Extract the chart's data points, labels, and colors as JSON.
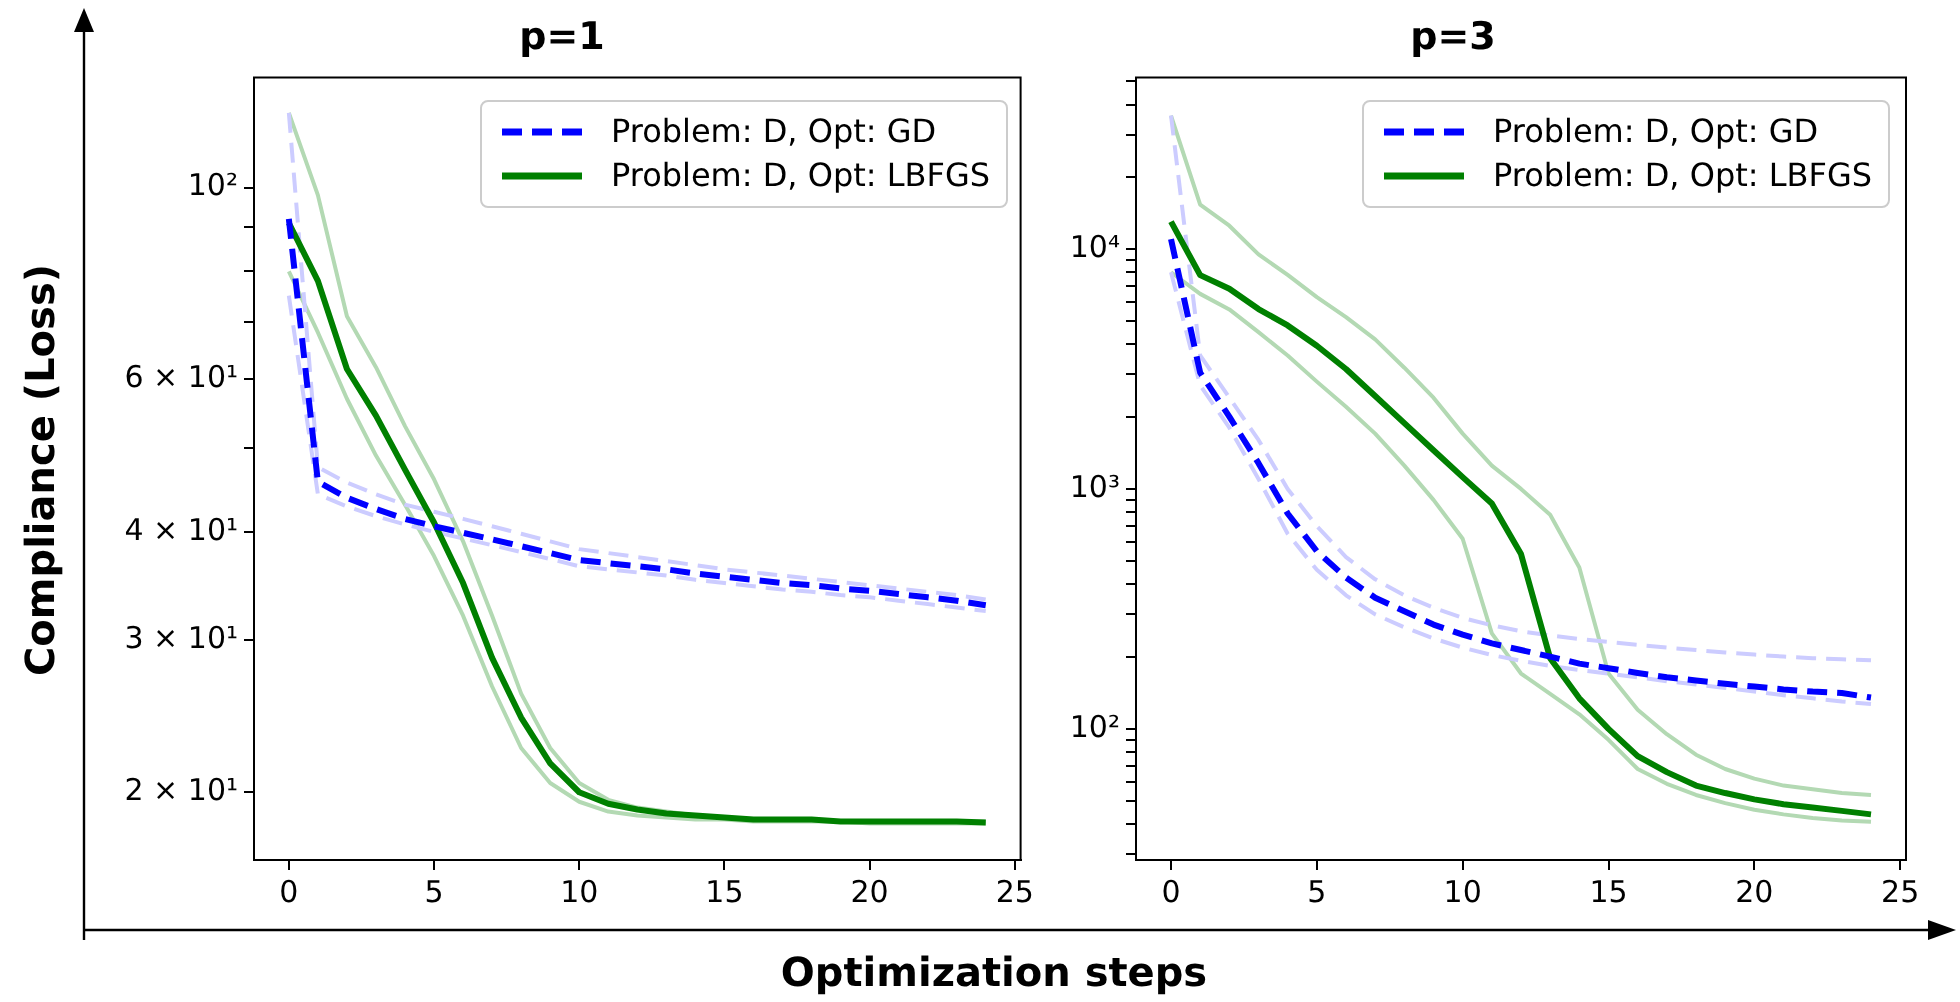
{
  "chart_data": [
    {
      "type": "line",
      "title": "p=1",
      "xlabel": "Optimization steps",
      "ylabel": "Compliance (Loss)",
      "log": "y",
      "legend": "top right",
      "marker": "none",
      "xlim": [
        -1.2,
        25.2
      ],
      "xticks": [
        0,
        5,
        10,
        15,
        20,
        25
      ],
      "ylim": [
        16.7,
        134
      ],
      "yticks": [
        {
          "value": 20,
          "label": "2 × 10¹"
        },
        {
          "value": 30,
          "label": "3 × 10¹"
        },
        {
          "value": 40,
          "label": "4 × 10¹"
        },
        {
          "value": 50,
          "label": null
        },
        {
          "value": 60,
          "label": "6 × 10¹"
        },
        {
          "value": 70,
          "label": null
        },
        {
          "value": 80,
          "label": null
        },
        {
          "value": 90,
          "label": null
        },
        {
          "value": 100,
          "label": "10²"
        }
      ],
      "x": [
        0,
        1,
        2,
        3,
        4,
        5,
        6,
        7,
        8,
        9,
        10,
        11,
        12,
        13,
        14,
        15,
        16,
        17,
        18,
        19,
        20,
        21,
        22,
        23,
        24
      ],
      "series": [
        {
          "color": "#ccccff",
          "line_style": "dashed",
          "values": [
            122,
            47.5,
            45.6,
            44.2,
            43.0,
            42.2,
            41.4,
            40.6,
            39.8,
            39.0,
            38.2,
            37.8,
            37.4,
            37.0,
            36.6,
            36.2,
            35.9,
            35.6,
            35.3,
            35.0,
            34.7,
            34.4,
            34.1,
            33.8,
            33.4
          ]
        },
        {
          "color": "#ccccff",
          "line_style": "dashed",
          "values": [
            75,
            44.2,
            42.8,
            41.7,
            40.8,
            40.0,
            39.3,
            38.6,
            37.9,
            37.2,
            36.5,
            36.2,
            35.9,
            35.6,
            35.2,
            34.9,
            34.6,
            34.3,
            34.1,
            33.8,
            33.6,
            33.3,
            33.0,
            32.7,
            32.4
          ]
        },
        {
          "color": "#b3d9b3",
          "line_style": "solid",
          "values": [
            122,
            98,
            71,
            62,
            53,
            46,
            39,
            32,
            26,
            22.5,
            20.5,
            19.6,
            19.2,
            19.0,
            18.8,
            18.7,
            18.6,
            18.6,
            18.6,
            18.5,
            18.5,
            18.5,
            18.5,
            18.5,
            18.5
          ]
        },
        {
          "color": "#b3d9b3",
          "line_style": "solid",
          "values": [
            80,
            68,
            57,
            49,
            43,
            37.5,
            32,
            26.5,
            22.5,
            20.5,
            19.5,
            19.0,
            18.8,
            18.7,
            18.6,
            18.6,
            18.5,
            18.5,
            18.5,
            18.5,
            18.4,
            18.4,
            18.4,
            18.4,
            18.4
          ]
        },
        {
          "name": "Problem: D, Opt: GD",
          "color": "#0000ff",
          "line_style": "dashed",
          "values": [
            92,
            45.7,
            43.8,
            42.5,
            41.4,
            40.6,
            39.9,
            39.2,
            38.5,
            37.8,
            37.1,
            36.8,
            36.5,
            36.2,
            35.8,
            35.5,
            35.2,
            34.9,
            34.7,
            34.4,
            34.2,
            33.9,
            33.6,
            33.3,
            32.9
          ]
        },
        {
          "name": "Problem: D, Opt: LBFGS",
          "color": "#008000",
          "line_style": "solid",
          "values": [
            91,
            78,
            61.7,
            54.5,
            47.2,
            41,
            34.9,
            28.6,
            24.4,
            21.6,
            20.0,
            19.4,
            19.1,
            18.9,
            18.8,
            18.7,
            18.6,
            18.6,
            18.6,
            18.5,
            18.5,
            18.5,
            18.5,
            18.5,
            18.45
          ]
        }
      ]
    },
    {
      "type": "line",
      "title": "p=3",
      "log": "y",
      "legend": "top right",
      "marker": "none",
      "xlim": [
        -1.2,
        25.2
      ],
      "xticks": [
        0,
        5,
        10,
        15,
        20,
        25
      ],
      "ylim": [
        28.4,
        51800
      ],
      "yticks": [
        {
          "value": 30,
          "label": null
        },
        {
          "value": 40,
          "label": null
        },
        {
          "value": 50,
          "label": null
        },
        {
          "value": 60,
          "label": null
        },
        {
          "value": 70,
          "label": null
        },
        {
          "value": 80,
          "label": null
        },
        {
          "value": 90,
          "label": null
        },
        {
          "value": 100,
          "label": "10²"
        },
        {
          "value": 200,
          "label": null
        },
        {
          "value": 300,
          "label": null
        },
        {
          "value": 400,
          "label": null
        },
        {
          "value": 500,
          "label": null
        },
        {
          "value": 600,
          "label": null
        },
        {
          "value": 700,
          "label": null
        },
        {
          "value": 800,
          "label": null
        },
        {
          "value": 900,
          "label": null
        },
        {
          "value": 1000,
          "label": "10³"
        },
        {
          "value": 2000,
          "label": null
        },
        {
          "value": 3000,
          "label": null
        },
        {
          "value": 4000,
          "label": null
        },
        {
          "value": 5000,
          "label": null
        },
        {
          "value": 6000,
          "label": null
        },
        {
          "value": 7000,
          "label": null
        },
        {
          "value": 8000,
          "label": null
        },
        {
          "value": 9000,
          "label": null
        },
        {
          "value": 10000,
          "label": "10⁴"
        },
        {
          "value": 20000,
          "label": null
        },
        {
          "value": 30000,
          "label": null
        },
        {
          "value": 40000,
          "label": null
        },
        {
          "value": 50000,
          "label": null
        }
      ],
      "x": [
        0,
        1,
        2,
        3,
        4,
        5,
        6,
        7,
        8,
        9,
        10,
        11,
        12,
        13,
        14,
        15,
        16,
        17,
        18,
        19,
        20,
        21,
        22,
        23,
        24
      ],
      "series": [
        {
          "color": "#ccccff",
          "line_style": "dashed",
          "values": [
            36000,
            3600,
            2400,
            1600,
            1000,
            700,
            520,
            420,
            360,
            320,
            290,
            270,
            255,
            245,
            237,
            230,
            224,
            218,
            213,
            208,
            204,
            200,
            197,
            195,
            193
          ]
        },
        {
          "color": "#ccccff",
          "line_style": "dashed",
          "values": [
            8000,
            2700,
            1800,
            1100,
            650,
            460,
            360,
            300,
            265,
            238,
            218,
            203,
            192,
            183,
            176,
            170,
            164,
            158,
            153,
            148,
            143,
            138,
            134,
            130,
            127
          ]
        },
        {
          "color": "#b3d9b3",
          "line_style": "solid",
          "values": [
            36000,
            15300,
            12500,
            9500,
            7800,
            6300,
            5200,
            4200,
            3200,
            2400,
            1700,
            1250,
            1000,
            780,
            470,
            170,
            120,
            95,
            78,
            68,
            62,
            58,
            56,
            54,
            53
          ]
        },
        {
          "color": "#b3d9b3",
          "line_style": "solid",
          "values": [
            8000,
            6500,
            5600,
            4500,
            3600,
            2800,
            2200,
            1700,
            1250,
            900,
            620,
            250,
            170,
            140,
            115,
            90,
            68,
            59,
            53,
            49,
            46,
            44,
            42.5,
            41.5,
            41
          ]
        },
        {
          "name": "Problem: D, Opt: GD",
          "color": "#0000ff",
          "line_style": "dashed",
          "values": [
            11000,
            3050,
            2000,
            1280,
            790,
            550,
            427,
            352,
            309,
            272,
            247,
            227,
            213,
            200,
            187,
            179,
            171,
            164,
            159,
            154,
            150,
            146,
            143,
            141,
            135
          ]
        },
        {
          "name": "Problem: D, Opt: LBFGS",
          "color": "#008000",
          "line_style": "solid",
          "values": [
            13000,
            7780,
            6830,
            5620,
            4800,
            3950,
            3160,
            2440,
            1880,
            1450,
            1120,
            869,
            535,
            197,
            134,
            100,
            77,
            66,
            58,
            54,
            50.8,
            48.5,
            47,
            45.5,
            44
          ]
        }
      ]
    }
  ]
}
